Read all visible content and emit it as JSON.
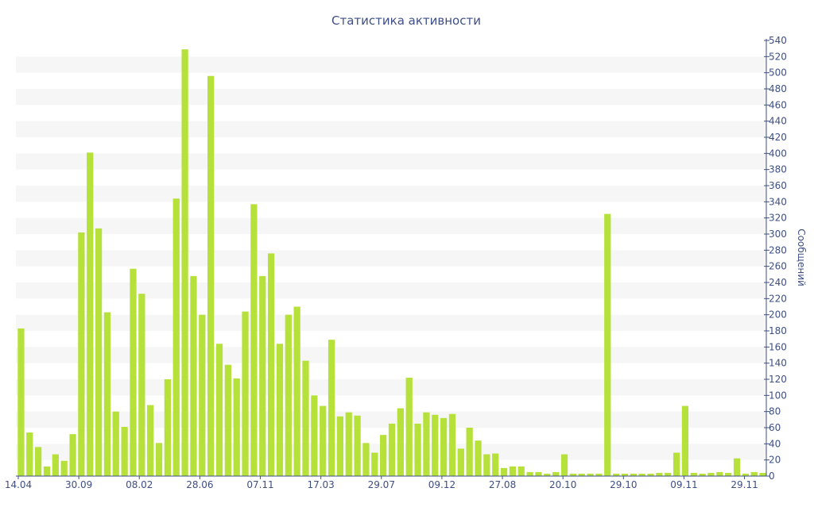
{
  "chart_data": {
    "type": "bar",
    "title": "Статистика активности",
    "xlabel": "",
    "ylabel": "Сообщений",
    "ylim": [
      0,
      540
    ],
    "y_ticks": [
      0,
      20,
      40,
      60,
      80,
      100,
      120,
      140,
      160,
      180,
      200,
      220,
      240,
      260,
      280,
      300,
      320,
      340,
      360,
      380,
      400,
      420,
      440,
      460,
      480,
      500,
      520,
      540
    ],
    "y_axis_side": "right",
    "grid": "alternating horizontal bands",
    "x_tick_labels": [
      "14.04",
      "30.09",
      "08.02",
      "28.06",
      "07.11",
      "17.03",
      "29.07",
      "09.12",
      "27.08",
      "20.10",
      "29.10",
      "09.11",
      "29.11"
    ],
    "series": [
      {
        "color": "#b5e13a",
        "values": [
          183,
          54,
          36,
          12,
          27,
          19,
          52,
          302,
          401,
          307,
          203,
          80,
          61,
          257,
          226,
          88,
          41,
          120,
          344,
          529,
          248,
          200,
          496,
          164,
          138,
          121,
          204,
          337,
          248,
          276,
          164,
          200,
          210,
          143,
          100,
          87,
          169,
          74,
          79,
          75,
          41,
          29,
          51,
          65,
          84,
          122,
          65,
          79,
          76,
          72,
          77,
          34,
          60,
          44,
          27,
          28,
          10,
          12,
          12,
          5,
          5,
          3,
          5,
          27,
          3,
          3,
          3,
          3,
          325,
          3,
          3,
          3,
          3,
          3,
          4,
          4,
          29,
          87,
          4,
          3,
          4,
          5,
          4,
          22,
          3,
          5,
          4
        ]
      }
    ]
  }
}
